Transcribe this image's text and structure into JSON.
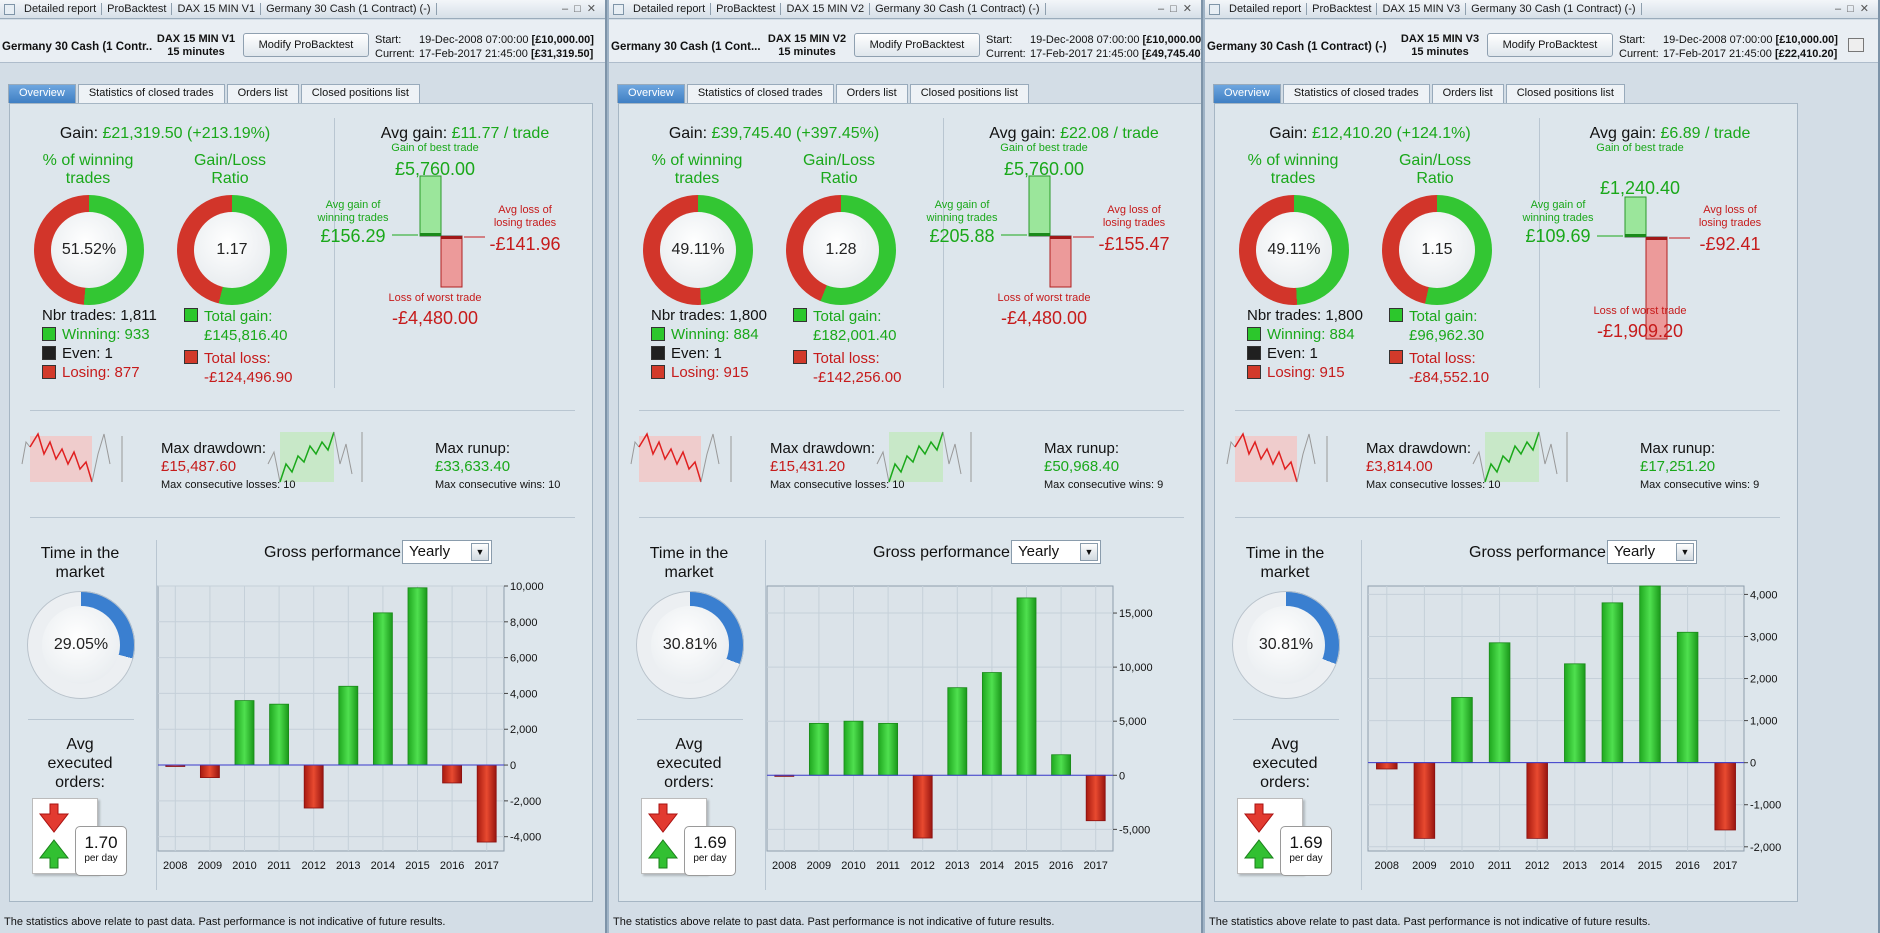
{
  "windows": [
    {
      "title_segments": [
        "Detailed report",
        "ProBacktest",
        "DAX 15 MIN V1",
        "Germany 30 Cash (1 Contract) (-)"
      ],
      "instrument": "Germany 30 Cash (1 Contr...",
      "strategy": "DAX 15 MIN V1",
      "timeframe": "15 minutes",
      "modify_button": "Modify ProBacktest",
      "start_label": "Start:",
      "start_value": "19-Dec-2008 07:00:00",
      "start_capital": "[£10,000.00]",
      "current_label": "Current:",
      "current_value": "17-Feb-2017 21:45:00",
      "current_capital": "[£31,319.50]",
      "tabs": [
        "Overview",
        "Statistics of closed trades",
        "Orders list",
        "Closed positions list"
      ],
      "gain_label": "Gain: ",
      "gain_value": "£21,319.50 (+213.19%)",
      "winning_pct_title_1": "% of winning",
      "winning_pct_title_2": "trades",
      "winning_pct": "51.52%",
      "winning_fraction": 0.5152,
      "gl_ratio_title_1": "Gain/Loss",
      "gl_ratio_title_2": "Ratio",
      "gl_ratio": "1.17",
      "gl_fraction": 0.539,
      "nbr_trades_label": "Nbr trades: ",
      "nbr_trades": "1,811",
      "winning_label": "Winning: ",
      "winning": "933",
      "even_label": "Even: ",
      "even": "1",
      "losing_label": "Losing: ",
      "losing": "877",
      "total_gain_label": "Total gain:",
      "total_gain": "£145,816.40",
      "total_loss_label": "Total loss:",
      "total_loss": "-£124,496.90",
      "avg_gain_label": "Avg gain: ",
      "avg_gain": "£11.77 / trade",
      "best_trade_label": "Gain of best trade",
      "best_trade": "£5,760.00",
      "avg_win_label_1": "Avg gain of",
      "avg_win_label_2": "winning trades",
      "avg_win": "£156.29",
      "avg_loss_label_1": "Avg loss of",
      "avg_loss_label_2": "losing trades",
      "avg_loss": "-£141.96",
      "worst_trade_label": "Loss of worst trade",
      "worst_trade": "-£4,480.00",
      "max_drawdown_label": "Max drawdown:",
      "max_drawdown": "£15,487.60",
      "max_consec_losses": "Max consecutive losses: 10",
      "max_runup_label": "Max runup:",
      "max_runup": "£33,633.40",
      "max_consec_wins": "Max consecutive wins: 10",
      "time_market_1": "Time in the",
      "time_market_2": "market",
      "time_market": "29.05%",
      "time_fraction": 0.2905,
      "avg_orders_1": "Avg",
      "avg_orders_2": "executed",
      "avg_orders_3": "orders:",
      "avg_orders": "1.70",
      "per_day": "per day",
      "gross_perf_label": "Gross performance",
      "period_select": "Yearly",
      "chart_data": {
        "type": "bar",
        "title": "Gross performance",
        "categories": [
          "2008",
          "2009",
          "2010",
          "2011",
          "2012",
          "2013",
          "2014",
          "2015",
          "2016",
          "2017"
        ],
        "values": [
          -80,
          -700,
          3600,
          3400,
          -2400,
          4400,
          8500,
          9900,
          -1000,
          -4300
        ],
        "ylim": [
          -4800,
          10000
        ],
        "yticks": [
          -4000,
          -2000,
          0,
          2000,
          4000,
          6000,
          8000,
          10000
        ],
        "ytick_labels": [
          "-4,000",
          "-2,000",
          "0",
          "2,000",
          "4,000",
          "6,000",
          "8,000",
          "10,000"
        ],
        "grid": true
      }
    },
    {
      "title_segments": [
        "Detailed report",
        "ProBacktest",
        "DAX 15 MIN V2",
        "Germany 30 Cash (1 Contract) (-)"
      ],
      "instrument": "Germany 30 Cash (1 Cont...",
      "strategy": "DAX 15 MIN V2",
      "timeframe": "15 minutes",
      "modify_button": "Modify ProBacktest",
      "start_label": "Start:",
      "start_value": "19-Dec-2008 07:00:00",
      "start_capital": "[£10,000.00]",
      "current_label": "Current:",
      "current_value": "17-Feb-2017 21:45:00",
      "current_capital": "[£49,745.40]",
      "tabs": [
        "Overview",
        "Statistics of closed trades",
        "Orders list",
        "Closed positions list"
      ],
      "gain_label": "Gain: ",
      "gain_value": "£39,745.40 (+397.45%)",
      "winning_pct_title_1": "% of winning",
      "winning_pct_title_2": "trades",
      "winning_pct": "49.11%",
      "winning_fraction": 0.4911,
      "gl_ratio_title_1": "Gain/Loss",
      "gl_ratio_title_2": "Ratio",
      "gl_ratio": "1.28",
      "gl_fraction": 0.561,
      "nbr_trades_label": "Nbr trades: ",
      "nbr_trades": "1,800",
      "winning_label": "Winning: ",
      "winning": "884",
      "even_label": "Even: ",
      "even": "1",
      "losing_label": "Losing: ",
      "losing": "915",
      "total_gain_label": "Total gain:",
      "total_gain": "£182,001.40",
      "total_loss_label": "Total loss:",
      "total_loss": "-£142,256.00",
      "avg_gain_label": "Avg gain: ",
      "avg_gain": "£22.08 / trade",
      "best_trade_label": "Gain of best trade",
      "best_trade": "£5,760.00",
      "avg_win_label_1": "Avg gain of",
      "avg_win_label_2": "winning trades",
      "avg_win": "£205.88",
      "avg_loss_label_1": "Avg loss of",
      "avg_loss_label_2": "losing trades",
      "avg_loss": "-£155.47",
      "worst_trade_label": "Loss of worst trade",
      "worst_trade": "-£4,480.00",
      "max_drawdown_label": "Max drawdown:",
      "max_drawdown": "£15,431.20",
      "max_consec_losses": "Max consecutive losses: 10",
      "max_runup_label": "Max runup:",
      "max_runup": "£50,968.40",
      "max_consec_wins": "Max consecutive wins: 9",
      "time_market_1": "Time in the",
      "time_market_2": "market",
      "time_market": "30.81%",
      "time_fraction": 0.3081,
      "avg_orders_1": "Avg",
      "avg_orders_2": "executed",
      "avg_orders_3": "orders:",
      "avg_orders": "1.69",
      "per_day": "per day",
      "gross_perf_label": "Gross performance",
      "period_select": "Yearly",
      "chart_data": {
        "type": "bar",
        "title": "Gross performance",
        "categories": [
          "2008",
          "2009",
          "2010",
          "2011",
          "2012",
          "2013",
          "2014",
          "2015",
          "2016",
          "2017"
        ],
        "values": [
          -100,
          4800,
          5000,
          4800,
          -5800,
          8100,
          9500,
          16400,
          1900,
          -4200
        ],
        "ylim": [
          -7000,
          17500
        ],
        "yticks": [
          -5000,
          0,
          5000,
          10000,
          15000
        ],
        "ytick_labels": [
          "-5,000",
          "0",
          "5,000",
          "10,000",
          "15,000"
        ],
        "grid": true
      }
    },
    {
      "title_segments": [
        "Detailed report",
        "ProBacktest",
        "DAX 15 MIN V3",
        "Germany 30 Cash (1 Contract) (-)"
      ],
      "instrument": "Germany 30 Cash (1 Contract) (-)",
      "strategy": "DAX 15 MIN V3",
      "timeframe": "15 minutes",
      "modify_button": "Modify ProBacktest",
      "start_label": "Start:",
      "start_value": "19-Dec-2008 07:00:00",
      "start_capital": "[£10,000.00]",
      "current_label": "Current:",
      "current_value": "17-Feb-2017 21:45:00",
      "current_capital": "[£22,410.20]",
      "tabs": [
        "Overview",
        "Statistics of closed trades",
        "Orders list",
        "Closed positions list"
      ],
      "gain_label": "Gain: ",
      "gain_value": "£12,410.20 (+124.1%)",
      "winning_pct_title_1": "% of winning",
      "winning_pct_title_2": "trades",
      "winning_pct": "49.11%",
      "winning_fraction": 0.4911,
      "gl_ratio_title_1": "Gain/Loss",
      "gl_ratio_title_2": "Ratio",
      "gl_ratio": "1.15",
      "gl_fraction": 0.535,
      "nbr_trades_label": "Nbr trades: ",
      "nbr_trades": "1,800",
      "winning_label": "Winning: ",
      "winning": "884",
      "even_label": "Even: ",
      "even": "1",
      "losing_label": "Losing: ",
      "losing": "915",
      "total_gain_label": "Total gain:",
      "total_gain": "£96,962.30",
      "total_loss_label": "Total loss:",
      "total_loss": "-£84,552.10",
      "avg_gain_label": "Avg gain: ",
      "avg_gain": "£6.89 / trade",
      "best_trade_label": "Gain of best trade",
      "best_trade": "£1,240.40",
      "avg_win_label_1": "Avg gain of",
      "avg_win_label_2": "winning trades",
      "avg_win": "£109.69",
      "avg_loss_label_1": "Avg loss of",
      "avg_loss_label_2": "losing trades",
      "avg_loss": "-£92.41",
      "worst_trade_label": "Loss of worst trade",
      "worst_trade": "-£1,909.20",
      "max_drawdown_label": "Max drawdown:",
      "max_drawdown": "£3,814.00",
      "max_consec_losses": "Max consecutive losses: 10",
      "max_runup_label": "Max runup:",
      "max_runup": "£17,251.20",
      "max_consec_wins": "Max consecutive wins: 9",
      "time_market_1": "Time in the",
      "time_market_2": "market",
      "time_market": "30.81%",
      "time_fraction": 0.3081,
      "avg_orders_1": "Avg",
      "avg_orders_2": "executed",
      "avg_orders_3": "orders:",
      "avg_orders": "1.69",
      "per_day": "per day",
      "gross_perf_label": "Gross performance",
      "period_select": "Yearly",
      "chart_data": {
        "type": "bar",
        "title": "Gross performance",
        "categories": [
          "2008",
          "2009",
          "2010",
          "2011",
          "2012",
          "2013",
          "2014",
          "2015",
          "2016",
          "2017"
        ],
        "values": [
          -150,
          -1800,
          1550,
          2850,
          -1800,
          2350,
          3800,
          4200,
          3100,
          -1600
        ],
        "ylim": [
          -2100,
          4200
        ],
        "yticks": [
          -2000,
          -1000,
          0,
          1000,
          2000,
          3000,
          4000
        ],
        "ytick_labels": [
          "-2,000",
          "-1,000",
          "0",
          "1,000",
          "2,000",
          "3,000",
          "4,000"
        ],
        "grid": true
      }
    }
  ],
  "status_text": "The statistics above relate to past data. Past performance is not indicative of future results.",
  "colors": {
    "gain": "#1aa81a",
    "loss": "#c61b1b",
    "tab_active": "#4a8ad0",
    "bar_pos": "#2fcf2f",
    "bar_neg": "#d22a1a"
  }
}
